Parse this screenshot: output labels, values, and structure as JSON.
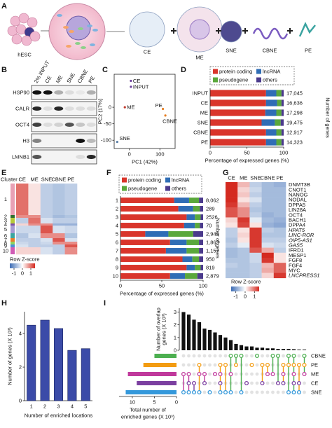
{
  "panels": [
    "A",
    "B",
    "C",
    "D",
    "E",
    "F",
    "G",
    "H",
    "I"
  ],
  "schematic": {
    "labels": [
      "hESC",
      "CE",
      "ME",
      "SNE",
      "CBNE",
      "PE"
    ]
  },
  "blot": {
    "lanes": [
      "2% INPUT",
      "CE",
      "ME",
      "SNE",
      "CBNE",
      "PE"
    ],
    "proteins": [
      "HSP90",
      "CALR",
      "OCT4",
      "H3",
      "LMNB1"
    ]
  },
  "chart_data": [
    {
      "type": "scatter",
      "xlabel": "PC1 (42%)",
      "ylabel": "PC2 (17%)",
      "labels": [
        "CE",
        "INPUT",
        "ME",
        "PE",
        "CBNE",
        "SNE"
      ],
      "x": [
        5,
        5,
        -15,
        110,
        118,
        -40
      ],
      "y": [
        80,
        62,
        0,
        -5,
        -25,
        -105
      ],
      "colors": [
        "#6a3d9a",
        "#6a3d9a",
        "#c0392b",
        "#e67e22",
        "#e67e22",
        "#5b7fa6"
      ],
      "xlim": [
        -50,
        150
      ],
      "xticks": [
        0,
        100
      ],
      "ylim": [
        -125,
        100
      ],
      "yticks": [
        -100,
        -50,
        0
      ]
    },
    {
      "type": "stacked_bar",
      "categories": [
        "INPUT",
        "CE",
        "ME",
        "SNE",
        "CBNE",
        "PE"
      ],
      "series": [
        {
          "name": "protein coding",
          "color": "#d9352b",
          "values": [
            76,
            76,
            75,
            70,
            76,
            76
          ]
        },
        {
          "name": "lncRNA",
          "color": "#2f6db5",
          "values": [
            14,
            15,
            15,
            18,
            14,
            14
          ]
        },
        {
          "name": "pseudogene",
          "color": "#5aa83c",
          "values": [
            7,
            6,
            7,
            8,
            7,
            7
          ]
        },
        {
          "name": "others",
          "color": "#4b3a8c",
          "values": [
            3,
            3,
            3,
            4,
            3,
            3
          ]
        }
      ],
      "counts": [
        {
          "value": 17045,
          "label": "17,045"
        },
        {
          "value": 16636,
          "label": "16,636"
        },
        {
          "value": 17298,
          "label": "17,298"
        },
        {
          "value": 19475,
          "label": "19,475"
        },
        {
          "value": 12917,
          "label": "12,917"
        },
        {
          "value": 14323,
          "label": "14,323"
        }
      ],
      "count_label": "Number of genes",
      "xlim": [
        0,
        100
      ],
      "xticks": [
        0,
        50,
        100
      ],
      "xlabel": "Percentage of expressed genes (%)"
    },
    {
      "type": "heatmap",
      "row_header": "Cluster",
      "columns": [
        "CE",
        "ME",
        "SNE",
        "CBNE",
        "PE"
      ],
      "rows": [
        "1",
        "2",
        "3",
        "4",
        "5",
        "6",
        "7",
        "8",
        "9",
        "10"
      ],
      "row_colors": [
        "#e8a0b4",
        "#2f6e2f",
        "#b6c93a",
        "#7d4fa8",
        "#a59bd3",
        "#3aa6a0",
        "#e87d2a",
        "#8dd35f",
        "#4a8fd6",
        "#d05bb5"
      ],
      "values": [
        [
          1.0,
          0.2,
          -0.5,
          -0.6,
          -0.5
        ],
        [
          0.8,
          0.8,
          -0.5,
          -0.7,
          -0.6
        ],
        [
          -0.5,
          1.0,
          -0.3,
          -0.5,
          -0.5
        ],
        [
          0.3,
          0.8,
          0.8,
          -0.8,
          -0.8
        ],
        [
          -0.4,
          -0.4,
          1.2,
          -0.3,
          -0.4
        ],
        [
          -0.6,
          -0.3,
          0.8,
          0.8,
          -0.6
        ],
        [
          -0.5,
          -0.5,
          -0.3,
          1.2,
          -0.3
        ],
        [
          -0.4,
          -0.5,
          -0.4,
          0.8,
          0.8
        ],
        [
          -0.3,
          -0.5,
          -0.5,
          -0.5,
          1.2
        ],
        [
          0.3,
          0.3,
          -0.3,
          -0.5,
          0.8
        ]
      ],
      "zlim": [
        -1.5,
        1.5
      ],
      "colorbar_label": "Row Z-score",
      "colorbar_ticks": [
        -1,
        0,
        1
      ]
    },
    {
      "type": "stacked_bar",
      "categories": [
        "1",
        "2",
        "3",
        "4",
        "5",
        "6",
        "7",
        "8",
        "9",
        "10"
      ],
      "series": [
        {
          "name": "protein coding",
          "color": "#d9352b",
          "values": [
            65,
            70,
            80,
            77,
            30,
            60,
            55,
            75,
            80,
            60
          ]
        },
        {
          "name": "lncRNA",
          "color": "#2f6db5",
          "values": [
            18,
            18,
            10,
            13,
            28,
            20,
            25,
            12,
            10,
            18
          ]
        },
        {
          "name": "pseudogene",
          "color": "#5aa83c",
          "values": [
            12,
            8,
            7,
            6,
            30,
            15,
            15,
            8,
            7,
            15
          ]
        },
        {
          "name": "others",
          "color": "#4b3a8c",
          "values": [
            5,
            4,
            3,
            4,
            12,
            5,
            5,
            5,
            3,
            7
          ]
        }
      ],
      "counts": [
        {
          "value": 8062,
          "label": "8,062"
        },
        289,
        2526,
        70,
        {
          "value": 2949,
          "label": "2,949"
        },
        {
          "value": 1863,
          "label": "1,863"
        },
        {
          "value": 1157,
          "label": "1,157"
        },
        950,
        819,
        {
          "value": 2879,
          "label": "2,879"
        }
      ],
      "count_label": "Number of genes",
      "xlim": [
        0,
        100
      ],
      "xticks": [
        0,
        50,
        100
      ],
      "xlabel": "Percentage of expressed genes (%)"
    },
    {
      "type": "heatmap",
      "columns": [
        "CE",
        "ME",
        "SNE",
        "CBNE",
        "PE"
      ],
      "rows": [
        "DNMT3B",
        "CNOT1",
        "NANOG",
        "NODAL",
        "DPPA5",
        "LIN28A",
        "OCT4",
        "BACH1",
        "DPPA4",
        "HPAT5",
        "LINC-ROR",
        "OIP5-AS1",
        "GAS5",
        "IFRD1",
        "MESP1",
        "FGF8",
        "FGF4",
        "MYC",
        "LNCPRESS1"
      ],
      "row_label_colors": [
        "#111111",
        "#111111",
        "#111111",
        "#111111",
        "#111111",
        "#111111",
        "#111111",
        "#111111",
        "#111111",
        "#5b3ea6",
        "#5b3ea6",
        "#5b3ea6",
        "#5b3ea6",
        "#d0281e",
        "#d0281e",
        "#d0281e",
        "#d0281e",
        "#111111",
        "#5b3ea6"
      ],
      "row_label_styles": [
        "normal",
        "normal",
        "normal",
        "normal",
        "normal",
        "normal",
        "normal",
        "normal",
        "normal",
        "italic",
        "italic",
        "italic",
        "italic",
        "normal",
        "normal",
        "normal",
        "normal",
        "normal",
        "italic"
      ],
      "values": [
        [
          1.5,
          0.5,
          -0.5,
          -0.7,
          -0.8
        ],
        [
          1.5,
          0.3,
          -0.4,
          -0.7,
          -0.7
        ],
        [
          1.5,
          0.4,
          -0.5,
          -0.7,
          -0.7
        ],
        [
          1.5,
          0.2,
          -0.3,
          -0.7,
          -0.7
        ],
        [
          1.4,
          0.5,
          -0.5,
          -0.7,
          -0.7
        ],
        [
          1.2,
          0.8,
          -0.6,
          -0.7,
          -0.7
        ],
        [
          1.2,
          0.8,
          -0.5,
          -0.8,
          -0.7
        ],
        [
          0.3,
          1.4,
          -0.2,
          -0.7,
          -0.8
        ],
        [
          0.2,
          1.3,
          0.2,
          -0.8,
          -0.9
        ],
        [
          -0.5,
          0.2,
          1.4,
          -0.5,
          -0.6
        ],
        [
          -0.5,
          0.3,
          1.4,
          -0.6,
          -0.6
        ],
        [
          -0.6,
          0.2,
          1.4,
          -0.5,
          -0.5
        ],
        [
          -0.5,
          -0.2,
          1.4,
          -0.3,
          -0.4
        ],
        [
          -0.7,
          -0.6,
          1.2,
          0.6,
          -0.5
        ],
        [
          -0.7,
          -0.6,
          -0.4,
          1.5,
          0.2
        ],
        [
          -0.6,
          -0.6,
          -0.4,
          1.4,
          0.2
        ],
        [
          -0.5,
          -0.6,
          -0.5,
          0.5,
          1.1
        ],
        [
          -0.6,
          -0.6,
          -0.5,
          0.6,
          1.1
        ],
        [
          -0.6,
          -0.6,
          -0.5,
          0.3,
          1.4
        ]
      ],
      "zlim": [
        -1.5,
        1.5
      ],
      "colorbar_label": "Row Z-score",
      "colorbar_ticks": [
        -1,
        0,
        1
      ]
    },
    {
      "type": "bar",
      "categories": [
        "1",
        "2",
        "3",
        "4",
        "5"
      ],
      "values": [
        4.5,
        4.8,
        4.3,
        3.0,
        3.1
      ],
      "color": "#3b4ba8",
      "ylim": [
        0,
        5.3
      ],
      "yticks": [
        0,
        2,
        4
      ],
      "xlabel": "Number of enriched locations",
      "ylabel": "Number of genes (X 10³)"
    },
    {
      "type": "upset",
      "values": [
        3.0,
        2.8,
        2.4,
        2.2,
        1.7,
        1.6,
        1.4,
        1.2,
        1.0,
        0.8,
        0.5,
        0.4,
        0.3,
        0.3,
        0.2,
        0.2,
        0.15,
        0.15,
        0.1,
        0.1,
        0.1,
        0.08,
        0.05,
        0.05
      ],
      "combinations": [
        [
          "SNE",
          "ME"
        ],
        [
          "ME",
          "CE",
          "SNE"
        ],
        [
          "CE",
          "SNE"
        ],
        [
          "ME",
          "SNE",
          "PE"
        ],
        [
          "CE",
          "ME"
        ],
        [
          "SNE"
        ],
        [
          "ME"
        ],
        [
          "CE",
          "ME",
          "SNE",
          "PE"
        ],
        [
          "PE",
          "SNE"
        ],
        [
          "CBNE",
          "ME",
          "SNE"
        ],
        [
          "CBNE",
          "PE"
        ],
        [
          "CBNE",
          "SNE"
        ],
        [
          "CE"
        ],
        [
          "PE"
        ],
        [
          "CBNE"
        ],
        [
          "CE",
          "PE"
        ],
        [
          "ME",
          "PE"
        ],
        [
          "CBNE",
          "ME"
        ],
        [
          "CBNE",
          "CE"
        ],
        [
          "CE",
          "ME",
          "PE"
        ],
        [
          "CBNE",
          "PE",
          "SNE"
        ],
        [
          "CBNE",
          "CE",
          "ME",
          "SNE",
          "PE"
        ],
        [
          "CE",
          "PE",
          "SNE"
        ],
        [
          "CBNE",
          "ME",
          "PE"
        ]
      ],
      "ylim": [
        0,
        3.3
      ],
      "yticks": [
        0,
        1,
        2,
        3
      ],
      "ylabel_lines": [
        "Number of overlap",
        "genes (X 10³)"
      ],
      "sets": [
        "CBNE",
        "PE",
        "ME",
        "CE",
        "SNE"
      ],
      "set_colors": [
        "#4caf50",
        "#f39c12",
        "#c0399c",
        "#7b3fa0",
        "#3498db"
      ],
      "set_sizes": [
        5,
        7.5,
        11,
        9,
        11.5
      ],
      "xlim": [
        0,
        13
      ],
      "xticks": [
        10,
        5,
        0
      ],
      "xlabel_lines": [
        "Total number of",
        "enriched genes (X 10³)"
      ]
    }
  ]
}
